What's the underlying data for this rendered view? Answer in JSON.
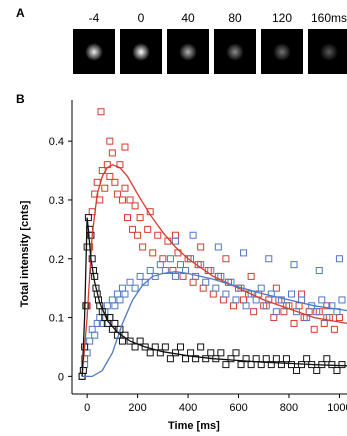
{
  "panel_a": {
    "letter": "A",
    "frames": [
      {
        "label": "-4",
        "brightness": 0.95
      },
      {
        "label": "0",
        "brightness": 1.0
      },
      {
        "label": "40",
        "brightness": 0.7
      },
      {
        "label": "80",
        "brightness": 0.55
      },
      {
        "label": "120",
        "brightness": 0.45
      },
      {
        "label": "160ms",
        "brightness": 0.35
      }
    ]
  },
  "panel_b": {
    "letter": "B"
  },
  "chart_data": {
    "type": "scatter",
    "xlabel": "Time [ms]",
    "ylabel": "Total intensity [cnts]",
    "xlim": [
      -60,
      1030
    ],
    "ylim": [
      -0.03,
      0.47
    ],
    "xticks": [
      "0",
      "200",
      "400",
      "600",
      "800",
      "1000"
    ],
    "xtick_values": [
      0,
      200,
      400,
      600,
      800,
      1000
    ],
    "yticks": [
      "0",
      "0.1",
      "0.2",
      "0.3",
      "0.4"
    ],
    "ytick_values": [
      0,
      0.1,
      0.2,
      0.3,
      0.4
    ],
    "marker": "open-square",
    "series": [
      {
        "color": "#d73a2e",
        "points": [
          [
            -20,
            0.0
          ],
          [
            -10,
            0.03
          ],
          [
            0,
            0.12
          ],
          [
            10,
            0.22
          ],
          [
            20,
            0.28
          ],
          [
            30,
            0.31
          ],
          [
            40,
            0.33
          ],
          [
            50,
            0.3
          ],
          [
            60,
            0.35
          ],
          [
            70,
            0.32
          ],
          [
            80,
            0.36
          ],
          [
            90,
            0.34
          ],
          [
            100,
            0.38
          ],
          [
            110,
            0.33
          ],
          [
            120,
            0.31
          ],
          [
            130,
            0.36
          ],
          [
            140,
            0.3
          ],
          [
            150,
            0.32
          ],
          [
            160,
            0.27
          ],
          [
            170,
            0.3
          ],
          [
            180,
            0.25
          ],
          [
            190,
            0.29
          ],
          [
            200,
            0.24
          ],
          [
            210,
            0.27
          ],
          [
            220,
            0.22
          ],
          [
            240,
            0.25
          ],
          [
            260,
            0.21
          ],
          [
            280,
            0.24
          ],
          [
            300,
            0.2
          ],
          [
            320,
            0.23
          ],
          [
            340,
            0.18
          ],
          [
            360,
            0.21
          ],
          [
            380,
            0.17
          ],
          [
            400,
            0.2
          ],
          [
            420,
            0.16
          ],
          [
            440,
            0.19
          ],
          [
            460,
            0.15
          ],
          [
            480,
            0.18
          ],
          [
            500,
            0.14
          ],
          [
            520,
            0.17
          ],
          [
            540,
            0.13
          ],
          [
            560,
            0.16
          ],
          [
            580,
            0.12
          ],
          [
            600,
            0.15
          ],
          [
            620,
            0.13
          ],
          [
            640,
            0.14
          ],
          [
            660,
            0.11
          ],
          [
            680,
            0.14
          ],
          [
            700,
            0.12
          ],
          [
            720,
            0.13
          ],
          [
            740,
            0.1
          ],
          [
            760,
            0.13
          ],
          [
            780,
            0.11
          ],
          [
            800,
            0.12
          ],
          [
            820,
            0.09
          ],
          [
            840,
            0.12
          ],
          [
            860,
            0.1
          ],
          [
            880,
            0.11
          ],
          [
            900,
            0.08
          ],
          [
            920,
            0.11
          ],
          [
            940,
            0.09
          ],
          [
            960,
            0.1
          ],
          [
            980,
            0.08
          ],
          [
            1000,
            0.1
          ],
          [
            1020,
            0.09
          ],
          [
            55,
            0.45
          ],
          [
            90,
            0.4
          ],
          [
            150,
            0.39
          ],
          [
            250,
            0.28
          ],
          [
            350,
            0.24
          ],
          [
            450,
            0.22
          ],
          [
            550,
            0.2
          ],
          [
            650,
            0.17
          ],
          [
            750,
            0.15
          ],
          [
            850,
            0.14
          ],
          [
            950,
            0.12
          ]
        ]
      },
      {
        "color": "#4f78c4",
        "points": [
          [
            -20,
            0.0
          ],
          [
            -10,
            0.02
          ],
          [
            0,
            0.04
          ],
          [
            10,
            0.06
          ],
          [
            20,
            0.08
          ],
          [
            30,
            0.07
          ],
          [
            40,
            0.09
          ],
          [
            50,
            0.1
          ],
          [
            60,
            0.09
          ],
          [
            70,
            0.11
          ],
          [
            80,
            0.12
          ],
          [
            90,
            0.1
          ],
          [
            100,
            0.13
          ],
          [
            110,
            0.12
          ],
          [
            120,
            0.14
          ],
          [
            130,
            0.13
          ],
          [
            140,
            0.15
          ],
          [
            150,
            0.14
          ],
          [
            170,
            0.16
          ],
          [
            190,
            0.15
          ],
          [
            210,
            0.17
          ],
          [
            230,
            0.16
          ],
          [
            250,
            0.18
          ],
          [
            270,
            0.17
          ],
          [
            290,
            0.19
          ],
          [
            310,
            0.18
          ],
          [
            330,
            0.2
          ],
          [
            350,
            0.17
          ],
          [
            370,
            0.19
          ],
          [
            390,
            0.18
          ],
          [
            410,
            0.2
          ],
          [
            430,
            0.17
          ],
          [
            450,
            0.19
          ],
          [
            470,
            0.16
          ],
          [
            490,
            0.18
          ],
          [
            510,
            0.15
          ],
          [
            530,
            0.17
          ],
          [
            550,
            0.14
          ],
          [
            570,
            0.16
          ],
          [
            590,
            0.13
          ],
          [
            610,
            0.15
          ],
          [
            630,
            0.12
          ],
          [
            650,
            0.14
          ],
          [
            670,
            0.13
          ],
          [
            690,
            0.15
          ],
          [
            710,
            0.12
          ],
          [
            730,
            0.14
          ],
          [
            750,
            0.11
          ],
          [
            770,
            0.13
          ],
          [
            790,
            0.12
          ],
          [
            810,
            0.14
          ],
          [
            830,
            0.11
          ],
          [
            850,
            0.13
          ],
          [
            870,
            0.1
          ],
          [
            890,
            0.12
          ],
          [
            910,
            0.11
          ],
          [
            930,
            0.13
          ],
          [
            950,
            0.1
          ],
          [
            970,
            0.12
          ],
          [
            990,
            0.11
          ],
          [
            1010,
            0.13
          ],
          [
            350,
            0.23
          ],
          [
            420,
            0.24
          ],
          [
            520,
            0.22
          ],
          [
            620,
            0.21
          ],
          [
            720,
            0.2
          ],
          [
            820,
            0.19
          ],
          [
            920,
            0.18
          ],
          [
            1000,
            0.2
          ]
        ]
      },
      {
        "color": "#111111",
        "points": [
          [
            -20,
            0.0
          ],
          [
            -15,
            0.01
          ],
          [
            -10,
            0.05
          ],
          [
            -5,
            0.12
          ],
          [
            0,
            0.22
          ],
          [
            5,
            0.27
          ],
          [
            10,
            0.25
          ],
          [
            15,
            0.24
          ],
          [
            20,
            0.2
          ],
          [
            25,
            0.18
          ],
          [
            30,
            0.17
          ],
          [
            35,
            0.15
          ],
          [
            40,
            0.14
          ],
          [
            45,
            0.13
          ],
          [
            50,
            0.12
          ],
          [
            60,
            0.11
          ],
          [
            70,
            0.1
          ],
          [
            80,
            0.09
          ],
          [
            90,
            0.1
          ],
          [
            100,
            0.08
          ],
          [
            110,
            0.09
          ],
          [
            120,
            0.07
          ],
          [
            130,
            0.08
          ],
          [
            140,
            0.06
          ],
          [
            150,
            0.07
          ],
          [
            170,
            0.06
          ],
          [
            190,
            0.05
          ],
          [
            210,
            0.06
          ],
          [
            230,
            0.05
          ],
          [
            250,
            0.04
          ],
          [
            270,
            0.05
          ],
          [
            290,
            0.04
          ],
          [
            310,
            0.05
          ],
          [
            330,
            0.03
          ],
          [
            350,
            0.04
          ],
          [
            370,
            0.05
          ],
          [
            390,
            0.03
          ],
          [
            410,
            0.04
          ],
          [
            430,
            0.03
          ],
          [
            450,
            0.05
          ],
          [
            470,
            0.03
          ],
          [
            490,
            0.04
          ],
          [
            510,
            0.03
          ],
          [
            530,
            0.04
          ],
          [
            550,
            0.02
          ],
          [
            570,
            0.03
          ],
          [
            590,
            0.04
          ],
          [
            610,
            0.02
          ],
          [
            630,
            0.03
          ],
          [
            650,
            0.02
          ],
          [
            670,
            0.03
          ],
          [
            690,
            0.02
          ],
          [
            710,
            0.03
          ],
          [
            730,
            0.02
          ],
          [
            750,
            0.03
          ],
          [
            770,
            0.02
          ],
          [
            790,
            0.03
          ],
          [
            810,
            0.02
          ],
          [
            830,
            0.01
          ],
          [
            850,
            0.02
          ],
          [
            870,
            0.03
          ],
          [
            890,
            0.02
          ],
          [
            910,
            0.01
          ],
          [
            930,
            0.02
          ],
          [
            950,
            0.03
          ],
          [
            970,
            0.02
          ],
          [
            990,
            0.01
          ],
          [
            1010,
            0.02
          ]
        ]
      }
    ],
    "fits": [
      {
        "color": "#d73a2e",
        "points": [
          [
            -20,
            0.0
          ],
          [
            0,
            0.1
          ],
          [
            20,
            0.24
          ],
          [
            40,
            0.31
          ],
          [
            60,
            0.34
          ],
          [
            80,
            0.355
          ],
          [
            100,
            0.36
          ],
          [
            130,
            0.355
          ],
          [
            160,
            0.34
          ],
          [
            200,
            0.31
          ],
          [
            250,
            0.275
          ],
          [
            300,
            0.245
          ],
          [
            350,
            0.22
          ],
          [
            400,
            0.2
          ],
          [
            500,
            0.17
          ],
          [
            600,
            0.15
          ],
          [
            700,
            0.13
          ],
          [
            800,
            0.115
          ],
          [
            900,
            0.1
          ],
          [
            1030,
            0.09
          ]
        ]
      },
      {
        "color": "#4f78c4",
        "points": [
          [
            -20,
            0.0
          ],
          [
            20,
            0.0
          ],
          [
            60,
            0.01
          ],
          [
            100,
            0.04
          ],
          [
            140,
            0.09
          ],
          [
            180,
            0.13
          ],
          [
            220,
            0.155
          ],
          [
            260,
            0.17
          ],
          [
            300,
            0.175
          ],
          [
            350,
            0.178
          ],
          [
            400,
            0.175
          ],
          [
            500,
            0.165
          ],
          [
            600,
            0.152
          ],
          [
            700,
            0.14
          ],
          [
            800,
            0.13
          ],
          [
            900,
            0.12
          ],
          [
            1030,
            0.112
          ]
        ]
      },
      {
        "color": "#111111",
        "points": [
          [
            -20,
            0.0
          ],
          [
            -10,
            0.1
          ],
          [
            -3,
            0.22
          ],
          [
            0,
            0.27
          ],
          [
            5,
            0.25
          ],
          [
            15,
            0.2
          ],
          [
            30,
            0.16
          ],
          [
            50,
            0.125
          ],
          [
            80,
            0.095
          ],
          [
            120,
            0.075
          ],
          [
            170,
            0.06
          ],
          [
            230,
            0.05
          ],
          [
            300,
            0.042
          ],
          [
            400,
            0.035
          ],
          [
            500,
            0.03
          ],
          [
            600,
            0.027
          ],
          [
            700,
            0.024
          ],
          [
            800,
            0.022
          ],
          [
            900,
            0.02
          ],
          [
            1030,
            0.018
          ]
        ]
      }
    ]
  }
}
